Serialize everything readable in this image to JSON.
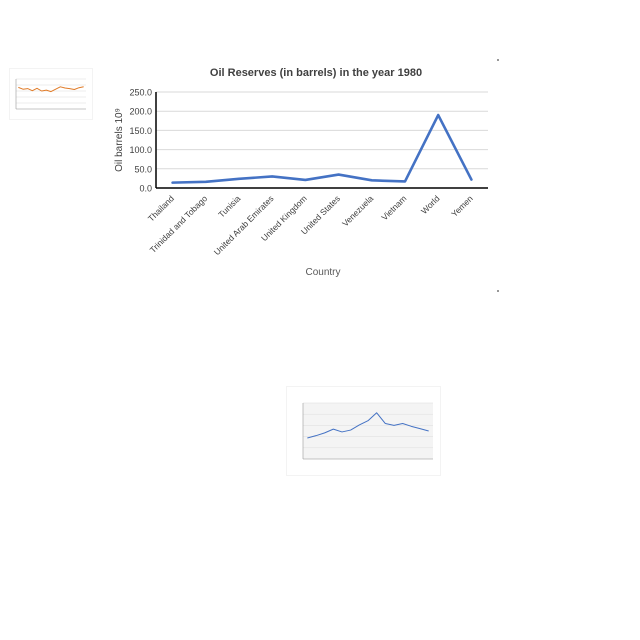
{
  "chart_data": [
    {
      "type": "line",
      "title": "Oil Reserves (in barrels) in the year 1980",
      "xlabel": "Country",
      "ylabel": "Oil barrels 10⁹",
      "categories": [
        "Thailand",
        "Trinidad and Tobago",
        "Tunisia",
        "United Arab Emirates",
        "United Kingdom",
        "United States",
        "Venezuela",
        "Vietnam",
        "World",
        "Yemen"
      ],
      "series": [
        {
          "values": [
            14,
            16,
            24,
            30,
            21,
            35,
            20,
            17,
            190,
            22
          ],
          "color": "#4472c4"
        }
      ],
      "yticks": [
        "0.0",
        "50.0",
        "100.0",
        "150.0",
        "200.0",
        "250.0"
      ],
      "ylim": [
        0,
        250
      ],
      "grid": true
    },
    {
      "type": "line",
      "series": [
        {
          "values": [
            72,
            66,
            68,
            61,
            69,
            60,
            63,
            58,
            66,
            74,
            70,
            68,
            65,
            71,
            74
          ],
          "color": "#e07b28"
        }
      ],
      "ylim": [
        0,
        100
      ],
      "grid": true
    },
    {
      "type": "line",
      "series": [
        {
          "values": [
            450,
            500,
            560,
            640,
            580,
            620,
            730,
            820,
            990,
            760,
            720,
            760,
            700,
            650,
            600
          ],
          "color": "#4472c4"
        }
      ],
      "ylim": [
        0,
        1200
      ],
      "grid": true
    }
  ]
}
